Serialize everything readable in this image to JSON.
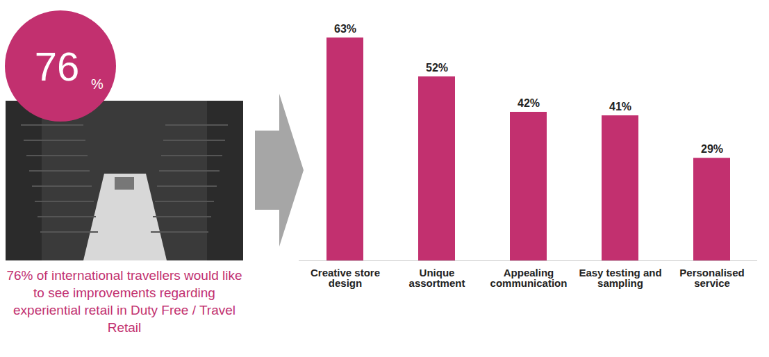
{
  "chart_data": {
    "type": "bar",
    "categories": [
      "Creative store design",
      "Unique assortment",
      "Appealing communication",
      "Easy testing and sampling",
      "Personalised service"
    ],
    "values": [
      63,
      52,
      42,
      41,
      29
    ],
    "value_labels": [
      "63%",
      "52%",
      "42%",
      "41%",
      "29%"
    ],
    "color": "#c2306f",
    "ylim": [
      0,
      63
    ],
    "data_labels": true,
    "tick_labels": "x"
  },
  "highlight": {
    "value": 76,
    "unit": "%",
    "text": "76% of international travellers would like to see improvements regarding experiential retail in Duty Free / Travel Retail"
  }
}
